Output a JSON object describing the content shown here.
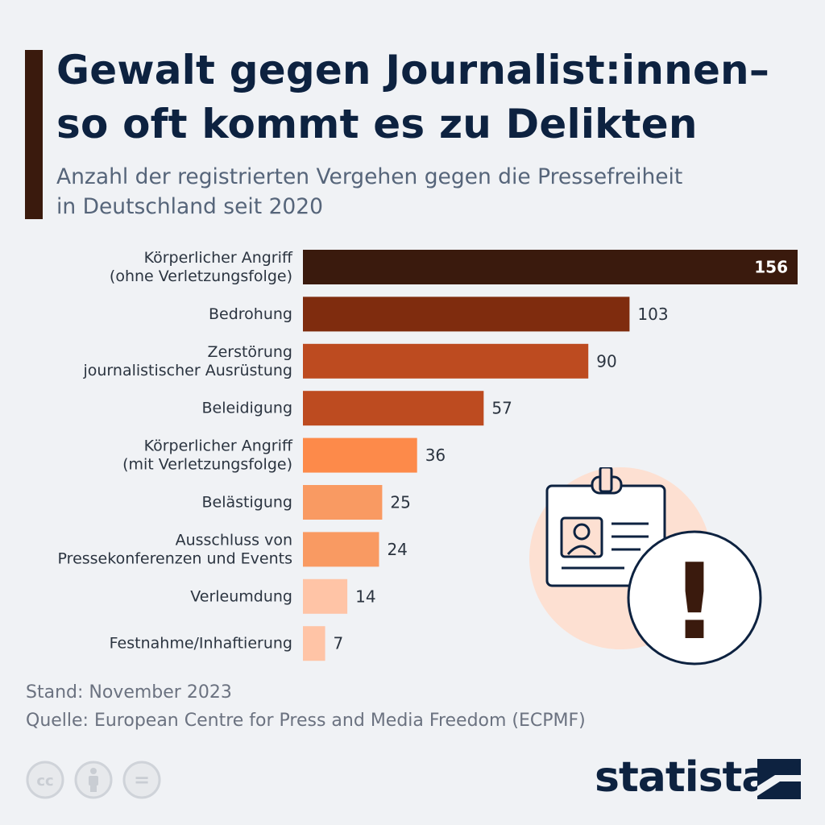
{
  "header": {
    "title_line1": "Gewalt gegen Journalist:innen–",
    "title_line2": "so oft kommt es zu Delikten",
    "subtitle_line1": "Anzahl der registrierten Vergehen gegen die Pressefreiheit",
    "subtitle_line2": "in Deutschland seit 2020"
  },
  "chart_data": {
    "type": "bar",
    "orientation": "horizontal",
    "title": "Gewalt gegen Journalist:innen– so oft kommt es zu Delikten",
    "subtitle": "Anzahl der registrierten Vergehen gegen die Pressefreiheit in Deutschland seit 2020",
    "categories": [
      [
        "Körperlicher Angriff",
        "(ohne Verletzungsfolge)"
      ],
      [
        "Bedrohung"
      ],
      [
        "Zerstörung",
        "journalistischer Ausrüstung"
      ],
      [
        "Beleidigung"
      ],
      [
        "Körperlicher Angriff",
        "(mit Verletzungsfolge)"
      ],
      [
        "Belästigung"
      ],
      [
        "Ausschluss von",
        "Pressekonferenzen und Events"
      ],
      [
        "Verleumdung"
      ],
      [
        "Festnahme/Inhaftierung"
      ]
    ],
    "values": [
      156,
      103,
      90,
      57,
      36,
      25,
      24,
      14,
      7
    ],
    "colors": [
      "#3a1a0d",
      "#7f2c0e",
      "#bd4b20",
      "#bd4b20",
      "#fd8a4a",
      "#f99a62",
      "#f99a62",
      "#ffc4a6",
      "#ffc4a6"
    ],
    "xlim": [
      0,
      156
    ],
    "xlabel": "",
    "ylabel": "",
    "grid": false,
    "legend": "none"
  },
  "footer": {
    "stand": "Stand: November 2023",
    "quelle": "Quelle: European Centre for Press and Media Freedom (ECPMF)"
  },
  "branding": {
    "logo_text": "statista",
    "license_icons": [
      "cc-icon",
      "attribution-icon",
      "no-derivatives-icon"
    ],
    "license_cc_text": "cc",
    "license_nd_text": "="
  },
  "illustration": {
    "icons": [
      "press-badge-icon",
      "warning-exclamation-icon"
    ],
    "exclamation": "!"
  }
}
